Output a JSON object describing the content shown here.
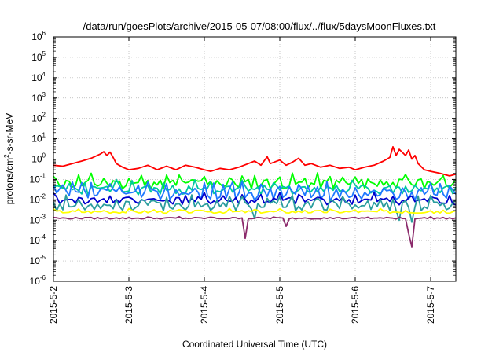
{
  "chart_data": {
    "type": "line",
    "title": "/data/run/goesPlots/archive/2015-05-07/08:00/flux/../flux/5daysMoonFluxes.txt",
    "xlabel": "Coordinated Universal Time (UTC)",
    "ylabel": {
      "prefix": "protons/cm",
      "sup": "2",
      "suffix": "-s-sr-MeV"
    },
    "x_range": [
      "2015-05-02T00:00",
      "2015-05-07T08:00"
    ],
    "x_ticks": [
      {
        "label": "2015-5-2",
        "value": "2015-05-02T00:00"
      },
      {
        "label": "2015-5-3",
        "value": "2015-05-03T00:00"
      },
      {
        "label": "2015-5-4",
        "value": "2015-05-04T00:00"
      },
      {
        "label": "2015-5-5",
        "value": "2015-05-05T00:00"
      },
      {
        "label": "2015-5-6",
        "value": "2015-05-06T00:00"
      },
      {
        "label": "2015-5-7",
        "value": "2015-05-07T00:00"
      }
    ],
    "y_scale": "log",
    "y_range": [
      1e-06,
      1000000.0
    ],
    "y_ticks": [
      {
        "base": "10",
        "exp": "-6"
      },
      {
        "base": "10",
        "exp": "-5"
      },
      {
        "base": "10",
        "exp": "-4"
      },
      {
        "base": "10",
        "exp": "-3"
      },
      {
        "base": "10",
        "exp": "-2"
      },
      {
        "base": "10",
        "exp": "-1"
      },
      {
        "base": "10",
        "exp": "0"
      },
      {
        "base": "10",
        "exp": "1"
      },
      {
        "base": "10",
        "exp": "2"
      },
      {
        "base": "10",
        "exp": "3"
      },
      {
        "base": "10",
        "exp": "4"
      },
      {
        "base": "10",
        "exp": "5"
      },
      {
        "base": "10",
        "exp": "6"
      }
    ],
    "grid": true,
    "series": [
      {
        "color": "#ff0000",
        "points": [
          [
            "2015-05-02T00:00",
            0.5
          ],
          [
            "2015-05-02T03:00",
            0.45
          ],
          [
            "2015-05-02T06:00",
            0.6
          ],
          [
            "2015-05-02T09:00",
            0.8
          ],
          [
            "2015-05-02T12:00",
            1.1
          ],
          [
            "2015-05-02T15:00",
            1.8
          ],
          [
            "2015-05-02T16:00",
            2.3
          ],
          [
            "2015-05-02T17:00",
            1.5
          ],
          [
            "2015-05-02T18:00",
            2.2
          ],
          [
            "2015-05-02T19:00",
            1.2
          ],
          [
            "2015-05-02T20:00",
            0.6
          ],
          [
            "2015-05-02T22:00",
            0.4
          ],
          [
            "2015-05-03T00:00",
            0.3
          ],
          [
            "2015-05-03T03:00",
            0.35
          ],
          [
            "2015-05-03T06:00",
            0.5
          ],
          [
            "2015-05-03T09:00",
            0.3
          ],
          [
            "2015-05-03T12:00",
            0.45
          ],
          [
            "2015-05-03T15:00",
            0.3
          ],
          [
            "2015-05-03T18:00",
            0.5
          ],
          [
            "2015-05-03T21:00",
            0.4
          ],
          [
            "2015-05-04T00:00",
            0.3
          ],
          [
            "2015-05-04T02:00",
            0.25
          ],
          [
            "2015-05-04T05:00",
            0.35
          ],
          [
            "2015-05-04T08:00",
            0.3
          ],
          [
            "2015-05-04T11:00",
            0.4
          ],
          [
            "2015-05-04T14:00",
            0.6
          ],
          [
            "2015-05-04T16:00",
            0.8
          ],
          [
            "2015-05-04T18:00",
            0.5
          ],
          [
            "2015-05-04T20:00",
            1.3
          ],
          [
            "2015-05-04T21:00",
            0.6
          ],
          [
            "2015-05-05T00:00",
            0.9
          ],
          [
            "2015-05-05T02:00",
            0.5
          ],
          [
            "2015-05-05T04:00",
            0.7
          ],
          [
            "2015-05-05T06:00",
            1.1
          ],
          [
            "2015-05-05T08:00",
            0.5
          ],
          [
            "2015-05-05T10:00",
            0.6
          ],
          [
            "2015-05-05T13:00",
            0.4
          ],
          [
            "2015-05-05T16:00",
            0.5
          ],
          [
            "2015-05-05T19:00",
            0.35
          ],
          [
            "2015-05-05T22:00",
            0.4
          ],
          [
            "2015-05-06T00:00",
            0.3
          ],
          [
            "2015-05-06T03:00",
            0.4
          ],
          [
            "2015-05-06T06:00",
            0.5
          ],
          [
            "2015-05-06T09:00",
            0.8
          ],
          [
            "2015-05-06T11:00",
            1.2
          ],
          [
            "2015-05-06T12:00",
            4.0
          ],
          [
            "2015-05-06T13:00",
            1.5
          ],
          [
            "2015-05-06T14:00",
            3.0
          ],
          [
            "2015-05-06T16:00",
            1.5
          ],
          [
            "2015-05-06T17:00",
            2.8
          ],
          [
            "2015-05-06T18:00",
            1.0
          ],
          [
            "2015-05-06T19:00",
            1.5
          ],
          [
            "2015-05-06T20:00",
            0.6
          ],
          [
            "2015-05-06T22:00",
            0.3
          ],
          [
            "2015-05-07T00:00",
            0.25
          ],
          [
            "2015-05-07T03:00",
            0.2
          ],
          [
            "2015-05-07T06:00",
            0.15
          ],
          [
            "2015-05-07T08:00",
            0.18
          ]
        ]
      },
      {
        "color": "#00ff00",
        "level": 0.06,
        "spread": 0.5,
        "period": 4,
        "seed": 11,
        "drops": []
      },
      {
        "color": "#00c8a0",
        "level": 0.03,
        "spread": 0.5,
        "period": 5,
        "seed": 23,
        "drops": []
      },
      {
        "color": "#1e78ff",
        "level": 0.018,
        "spread": 0.6,
        "period": 3,
        "seed": 37,
        "drops": []
      },
      {
        "color": "#0000cc",
        "level": 0.009,
        "spread": 0.4,
        "period": 6,
        "seed": 41,
        "drops": []
      },
      {
        "color": "#2a9d9d",
        "level": 0.005,
        "spread": 0.5,
        "period": 4,
        "seed": 53,
        "drops": [
          [
            "2015-05-04T16:00",
            0.0012
          ],
          [
            "2015-05-06T14:00",
            0.001
          ],
          [
            "2015-05-06T18:00",
            0.0008
          ]
        ]
      },
      {
        "color": "#ffff00",
        "level": 0.0026,
        "spread": 0.15,
        "period": 8,
        "seed": 67,
        "drops": []
      },
      {
        "color": "#8b2a6b",
        "level": 0.00125,
        "spread": 0.08,
        "period": 10,
        "seed": 79,
        "drops": [
          [
            "2015-05-04T13:00",
            0.00013
          ],
          [
            "2015-05-05T02:00",
            0.0005
          ],
          [
            "2015-05-06T17:00",
            0.00022
          ],
          [
            "2015-05-06T18:00",
            5e-05
          ]
        ]
      }
    ]
  }
}
